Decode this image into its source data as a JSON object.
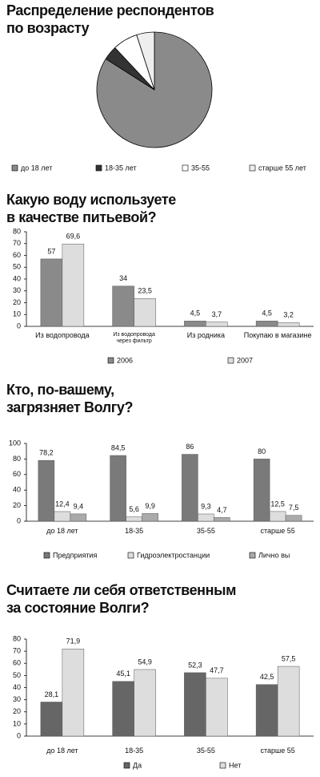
{
  "chart_data": [
    {
      "type": "pie",
      "title": [
        "Распределение респондентов",
        "по возрасту"
      ],
      "categories": [
        "до 18 лет",
        "18-35 лет",
        "35-55",
        "старше 55 лет"
      ],
      "values": [
        84,
        4,
        7,
        5
      ],
      "colors": [
        "#8a8a8a",
        "#333333",
        "#ffffff",
        "#eeeeee"
      ]
    },
    {
      "type": "bar",
      "title": [
        "Какую воду используете",
        "в качестве питьевой?"
      ],
      "categories": [
        "Из водопровода",
        "Из водопровода через фильтр",
        "Из родника",
        "Покупаю в магазине"
      ],
      "series": [
        {
          "name": "2006",
          "color": "#8a8a8a",
          "values": [
            57,
            34,
            4.5,
            4.5
          ],
          "value_labels": [
            "57",
            "34",
            "4,5",
            "4,5"
          ]
        },
        {
          "name": "2007",
          "color": "#dddddd",
          "values": [
            69.6,
            23.5,
            3.7,
            3.2
          ],
          "value_labels": [
            "69,6",
            "23,5",
            "3,7",
            "3,2"
          ]
        }
      ],
      "ylim": [
        0,
        80
      ],
      "yticks": [
        0,
        10,
        20,
        30,
        40,
        50,
        60,
        70,
        80
      ]
    },
    {
      "type": "bar",
      "title": [
        "Кто, по-вашему,",
        "загрязняет Волгу?"
      ],
      "categories": [
        "до 18 лет",
        "18-35",
        "35-55",
        "старше 55"
      ],
      "series": [
        {
          "name": "Предприятия",
          "color": "#7a7a7a",
          "values": [
            78.2,
            84.5,
            86,
            80
          ],
          "value_labels": [
            "78,2",
            "84,5",
            "86",
            "80"
          ]
        },
        {
          "name": "Гидроэлектростанции",
          "color": "#dddddd",
          "values": [
            12.4,
            5.6,
            9.3,
            12.5
          ],
          "value_labels": [
            "12,4",
            "5,6",
            "9,3",
            "12,5"
          ]
        },
        {
          "name": "Лично вы",
          "color": "#aaaaaa",
          "values": [
            9.4,
            9.9,
            4.7,
            7.5
          ],
          "value_labels": [
            "9,4",
            "9,9",
            "4,7",
            "7,5"
          ]
        }
      ],
      "ylim": [
        0,
        100
      ],
      "yticks": [
        0,
        20,
        40,
        60,
        80,
        100
      ]
    },
    {
      "type": "bar",
      "title": [
        "Считаете ли себя ответственным",
        "за состояние Волги?"
      ],
      "categories": [
        "до 18 лет",
        "18-35",
        "35-55",
        "старше 55"
      ],
      "series": [
        {
          "name": "Да",
          "color": "#666666",
          "values": [
            28.1,
            45.1,
            52.3,
            42.5
          ],
          "value_labels": [
            "28,1",
            "45,1",
            "52,3",
            "42,5"
          ]
        },
        {
          "name": "Нет",
          "color": "#dddddd",
          "values": [
            71.9,
            54.9,
            47.7,
            57.5
          ],
          "value_labels": [
            "71,9",
            "54,9",
            "47,7",
            "57,5"
          ]
        }
      ],
      "ylim": [
        0,
        80
      ],
      "yticks": [
        0,
        10,
        20,
        30,
        40,
        50,
        60,
        70,
        80
      ]
    }
  ]
}
